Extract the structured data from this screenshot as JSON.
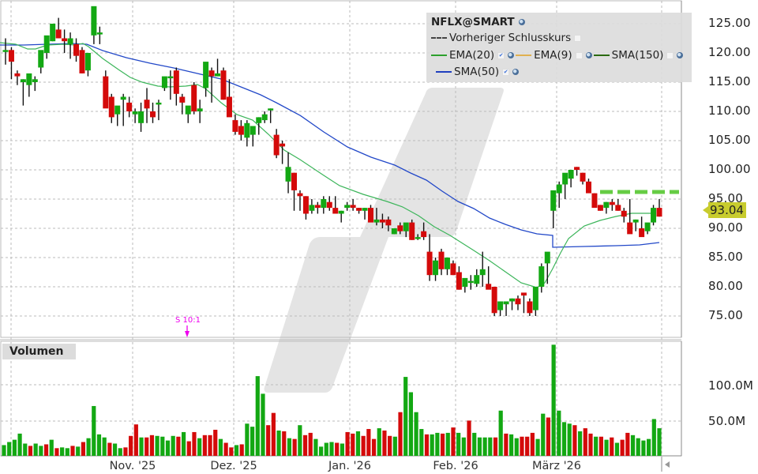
{
  "chart_title": "NFLX@SMART",
  "legend": {
    "symbol": "NFLX@SMART",
    "prev_close_label": "Vorheriger Schlusskurs",
    "indicators": [
      {
        "name": "EMA(20)",
        "color": "#2ca02c",
        "checked": true
      },
      {
        "name": "EMA(9)",
        "color": "#e0b050",
        "checked": false
      },
      {
        "name": "SMA(150)",
        "color": "#2a6a10",
        "checked": false
      },
      {
        "name": "SMA(50)",
        "color": "#1f3fbf",
        "checked": true
      }
    ]
  },
  "last_price": "93.04",
  "volume_label": "Volumen",
  "split_marker": "S 10:1",
  "colors": {
    "up": "#13a813",
    "down": "#d40a0a",
    "ema20": "#3cb55a",
    "sma50": "#2248c8",
    "prev_close": "#66cc44",
    "price_tag": "#c8cc2e"
  },
  "chart_data": [
    {
      "type": "candlestick",
      "title": "NFLX@SMART",
      "ylabel": "",
      "y_ticks": [
        "125.00",
        "120.00",
        "115.00",
        "110.00",
        "105.00",
        "100.00",
        "95.00",
        "90.00",
        "85.00",
        "80.00",
        "75.00"
      ],
      "ylim": [
        72,
        127
      ],
      "x_tick_labels": [
        "Nov. '25",
        "Dez. '25",
        "Jan. '26",
        "Feb. '26",
        "März '26"
      ],
      "grid": true,
      "last_price": 93.04,
      "prev_close": 96.2,
      "ohlc": [
        [
          120.5,
          122.5,
          118,
          120.5
        ],
        [
          120.5,
          121,
          115.5,
          118.5
        ],
        [
          116.5,
          117,
          114.5,
          116
        ],
        [
          115,
          115.5,
          111,
          115.5
        ],
        [
          114.5,
          116,
          112.5,
          116.5
        ],
        [
          115,
          116,
          113.5,
          115.5
        ],
        [
          117.5,
          119.5,
          116.5,
          120.5
        ],
        [
          120,
          122.5,
          119,
          123
        ],
        [
          122,
          125,
          122,
          125
        ],
        [
          124,
          126,
          123,
          122.5
        ],
        [
          122.5,
          124,
          120,
          122
        ],
        [
          121.5,
          123.5,
          119,
          122.5
        ],
        [
          121.5,
          122.5,
          118.5,
          119.5
        ],
        [
          120.5,
          121,
          116.5,
          116.5
        ],
        [
          117,
          119.5,
          116,
          120
        ],
        [
          123,
          126,
          121.5,
          128
        ],
        [
          123.5,
          124.5,
          121.5,
          123.5
        ],
        [
          116,
          117,
          111,
          110.5
        ],
        [
          112.5,
          113,
          108,
          109
        ],
        [
          109.5,
          110.5,
          107.5,
          111
        ],
        [
          112,
          113,
          107.5,
          112.5
        ],
        [
          111.5,
          112.5,
          109,
          110
        ],
        [
          109.5,
          110.5,
          108,
          110
        ],
        [
          108,
          111.5,
          106.5,
          110
        ],
        [
          112,
          114,
          108,
          110.5
        ],
        [
          110,
          111.5,
          108,
          109
        ],
        [
          111.5,
          112,
          108.5,
          111.5
        ],
        [
          114,
          115,
          113.5,
          116
        ],
        [
          116,
          117,
          112,
          116
        ],
        [
          117,
          117.5,
          111,
          113
        ],
        [
          112.5,
          113,
          109.5,
          111.5
        ],
        [
          109.5,
          110.5,
          108,
          111
        ],
        [
          114.5,
          115,
          109.5,
          110
        ],
        [
          110,
          112,
          108,
          110.5
        ],
        [
          114,
          116,
          112.5,
          118.5
        ],
        [
          117,
          117.5,
          111.5,
          116
        ],
        [
          116,
          119,
          116,
          116.5
        ],
        [
          117,
          117.5,
          112,
          112
        ],
        [
          112.5,
          115.5,
          111.5,
          109
        ],
        [
          108.5,
          109.5,
          106,
          106.5
        ],
        [
          107.5,
          108.5,
          105,
          106
        ],
        [
          105.5,
          108.5,
          104,
          108
        ],
        [
          106,
          107.5,
          104,
          107.5
        ],
        [
          108,
          109,
          106,
          109
        ],
        [
          108.5,
          110,
          108,
          109.5
        ],
        [
          110.5,
          110.5,
          108,
          110.5
        ],
        [
          106,
          107,
          102,
          102.5
        ],
        [
          104.5,
          105,
          101,
          104
        ],
        [
          98,
          103,
          96,
          100.5
        ],
        [
          99.5,
          99.5,
          93,
          96.5
        ],
        [
          96,
          96.5,
          93,
          95.5
        ],
        [
          95.5,
          95.5,
          91.5,
          92.5
        ],
        [
          93,
          95,
          92.5,
          94
        ],
        [
          94,
          94.5,
          92.5,
          93.5
        ],
        [
          93.5,
          95.5,
          92.5,
          95
        ],
        [
          94.5,
          95.5,
          93,
          93.5
        ],
        [
          93.5,
          95.5,
          92.5,
          92.5
        ],
        [
          92.5,
          93,
          91,
          93
        ],
        [
          93.5,
          94.5,
          93,
          94
        ],
        [
          94,
          95,
          93,
          93.5
        ],
        [
          93.5,
          93.5,
          92.5,
          93
        ],
        [
          93,
          93.5,
          91.5,
          93.5
        ],
        [
          93.5,
          94,
          92.5,
          91
        ],
        [
          91,
          93.5,
          90.5,
          91.5
        ],
        [
          91.5,
          92.5,
          90,
          91
        ],
        [
          91.5,
          92,
          89.5,
          90.5
        ],
        [
          89,
          90,
          89,
          90
        ],
        [
          90.5,
          91,
          89,
          89.5
        ],
        [
          89.5,
          90,
          88.5,
          91
        ],
        [
          91,
          91.5,
          88,
          88
        ],
        [
          88.5,
          89,
          88,
          88.5
        ],
        [
          89.5,
          91,
          88,
          88.5
        ],
        [
          86,
          89,
          81,
          82
        ],
        [
          82,
          85,
          81,
          84.5
        ],
        [
          86,
          86.5,
          82,
          83
        ],
        [
          83,
          85,
          82,
          85
        ],
        [
          84,
          84.5,
          82,
          82
        ],
        [
          82.5,
          83.5,
          79.5,
          79.5
        ],
        [
          80,
          81,
          79,
          81.5
        ],
        [
          81,
          82,
          79.5,
          81
        ],
        [
          80.5,
          83,
          80,
          82
        ],
        [
          82,
          86,
          80,
          83
        ],
        [
          80.5,
          83.5,
          80,
          79.5
        ],
        [
          80,
          80,
          75,
          75.5
        ],
        [
          76,
          77.5,
          75,
          77.5
        ],
        [
          77,
          77.5,
          75,
          77.5
        ],
        [
          77.5,
          78,
          76,
          78
        ],
        [
          78,
          78.5,
          76,
          77
        ],
        [
          79,
          78.5,
          75.5,
          78.5
        ],
        [
          77.5,
          78,
          75,
          75.5
        ],
        [
          76,
          80,
          75,
          80
        ],
        [
          80,
          84,
          79,
          83.5
        ],
        [
          84,
          84.5,
          80.5,
          86
        ],
        [
          93,
          96,
          90,
          96.5
        ],
        [
          96,
          98,
          93.5,
          97.5
        ],
        [
          97.5,
          98.5,
          95,
          99.5
        ],
        [
          98.5,
          100,
          97,
          100
        ],
        [
          100.5,
          100.5,
          99,
          100
        ],
        [
          99.5,
          99.5,
          97.5,
          98
        ],
        [
          98,
          98.5,
          96.5,
          96
        ],
        [
          96,
          96,
          94.5,
          93.5
        ],
        [
          94,
          94,
          93,
          93
        ],
        [
          93.5,
          94.5,
          92.5,
          94.5
        ],
        [
          94.5,
          95,
          93,
          94
        ],
        [
          94,
          95,
          93,
          93
        ],
        [
          93,
          93.5,
          91,
          92
        ],
        [
          91,
          95,
          90,
          89
        ],
        [
          91,
          91.5,
          89.5,
          91.5
        ],
        [
          90,
          92,
          89,
          88.5
        ],
        [
          89.5,
          90.5,
          89,
          91
        ],
        [
          91,
          94,
          90.5,
          93.5
        ],
        [
          93.5,
          95,
          92,
          92
        ]
      ],
      "volume": {
        "label": "Volumen",
        "y_ticks": [
          "100.0M",
          "50.0M"
        ],
        "ylim": [
          0,
          140
        ]
      }
    }
  ]
}
